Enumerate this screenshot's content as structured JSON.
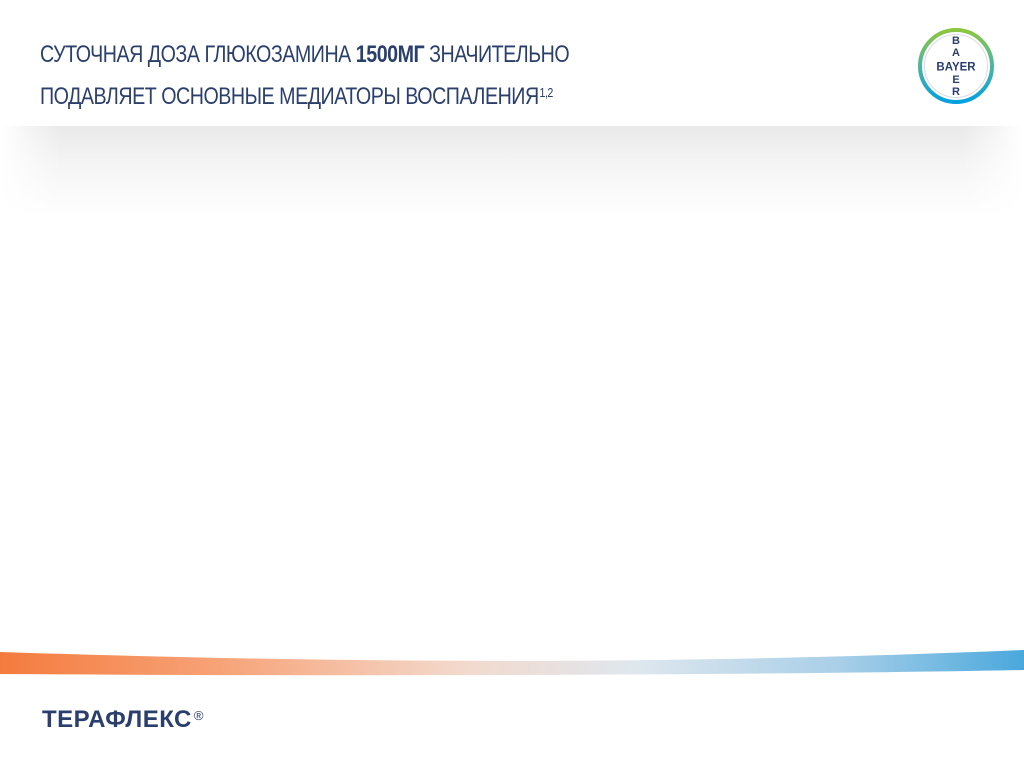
{
  "slide": {
    "title": {
      "line1_part1": "СУТОЧНАЯ ДОЗА ГЛЮКОЗАМИНА ",
      "line1_bold": "1500МГ",
      "line1_part2": " ЗНАЧИТЕЛЬНО",
      "line2": "ПОДАВЛЯЕТ ОСНОВНЫЕ МЕДИАТОРЫ ВОСПАЛЕНИЯ",
      "superscript": "1,2"
    },
    "logo": {
      "name": "bayer-cross-logo",
      "vertical_letters": [
        "B",
        "A",
        "Y",
        "E",
        "R"
      ],
      "horizontal_word": "BAYER",
      "colors": {
        "outer_ring_green": "#8dc63f",
        "outer_ring_blue": "#00a0e1",
        "text": "#2b3f6c"
      }
    },
    "footer": {
      "brand_name": "ТЕРАФЛЕКС",
      "registered_mark": "®"
    },
    "colors": {
      "title": "#2b3f6c",
      "band_orange": "#f47b3e",
      "band_blue": "#4aa8dc"
    }
  }
}
